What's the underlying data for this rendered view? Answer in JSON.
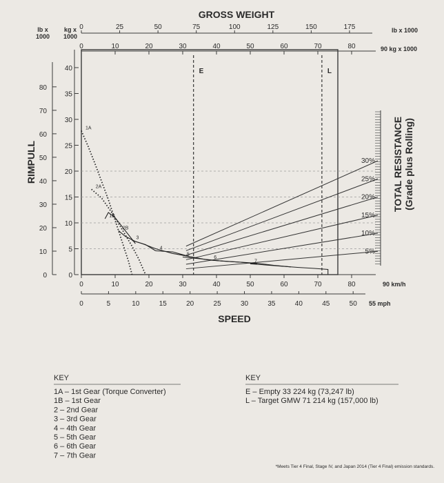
{
  "chart_data": {
    "type": "line",
    "title": "GROSS WEIGHT",
    "weight_lb_label": "lb x 1000",
    "weight_lb_ticks": [
      "0",
      "25",
      "50",
      "75",
      "100",
      "125",
      "150",
      "175"
    ],
    "weight_kg_label": "90 kg x 1000",
    "weight_kg_ticks": [
      "0",
      "10",
      "20",
      "30",
      "40",
      "50",
      "60",
      "70",
      "80"
    ],
    "rimpull_label": "RIMPULL",
    "rimpull_lb_header": [
      "lb x",
      "1000"
    ],
    "rimpull_kg_header": [
      "kg x",
      "1000"
    ],
    "rimpull_lb_ticks": [
      "0",
      "10",
      "20",
      "30",
      "40",
      "50",
      "60",
      "70",
      "80"
    ],
    "rimpull_kg_ticks": [
      "0",
      "5",
      "10",
      "15",
      "20",
      "25",
      "30",
      "35",
      "40"
    ],
    "speed_label": "SPEED",
    "speed_kmh_label": "90 km/h",
    "speed_kmh_ticks": [
      "0",
      "10",
      "20",
      "30",
      "40",
      "50",
      "60",
      "70",
      "80"
    ],
    "speed_mph_label": "55 mph",
    "speed_mph_ticks": [
      "0",
      "5",
      "10",
      "15",
      "20",
      "25",
      "30",
      "35",
      "40",
      "45",
      "50"
    ],
    "resistance_label": [
      "TOTAL RESISTANCE",
      "(Grade plus Rolling)"
    ],
    "resistance_lines": [
      {
        "label": "30%",
        "kg_at_80": 22
      },
      {
        "label": "25%",
        "kg_at_80": 18.5
      },
      {
        "label": "20%",
        "kg_at_80": 15
      },
      {
        "label": "15%",
        "kg_at_80": 11.5
      },
      {
        "label": "10%",
        "kg_at_80": 8
      },
      {
        "label": "5%",
        "kg_at_80": 4.5
      }
    ],
    "markers": [
      {
        "label": "E",
        "weight_kg": 33.2
      },
      {
        "label": "L",
        "weight_kg": 71.2
      }
    ],
    "gear_curves": [
      {
        "label": "1A",
        "points": [
          [
            0,
            27.8
          ],
          [
            2,
            24.8
          ],
          [
            4,
            21.5
          ],
          [
            6,
            18
          ],
          [
            8,
            14.5
          ],
          [
            10,
            10.5
          ],
          [
            12,
            6.5
          ],
          [
            14,
            2.5
          ],
          [
            15,
            0
          ]
        ]
      },
      {
        "label": "2A",
        "points": [
          [
            3,
            16.5
          ],
          [
            6,
            14.8
          ],
          [
            9,
            12
          ],
          [
            12,
            8.8
          ],
          [
            15,
            5.5
          ],
          [
            17,
            3
          ],
          [
            19,
            0
          ]
        ]
      },
      {
        "label": "1B",
        "points": [
          [
            7,
            10.8
          ],
          [
            8,
            12
          ],
          [
            10,
            11
          ],
          [
            13,
            8.5
          ],
          [
            16,
            6
          ]
        ]
      },
      {
        "label": "2B",
        "points": [
          [
            11,
            8.5
          ],
          [
            13,
            7.4
          ],
          [
            16,
            6.4
          ],
          [
            19,
            5.8
          ],
          [
            22,
            4.6
          ]
        ]
      },
      {
        "label": "3",
        "points": [
          [
            15,
            6.6
          ],
          [
            18,
            6
          ],
          [
            22,
            5
          ],
          [
            27,
            4.1
          ],
          [
            32,
            3.5
          ]
        ]
      },
      {
        "label": "4",
        "points": [
          [
            22,
            4.6
          ],
          [
            27,
            4.4
          ],
          [
            32,
            3.5
          ],
          [
            37,
            2.9
          ],
          [
            42,
            2.6
          ]
        ]
      },
      {
        "label": "5",
        "points": [
          [
            30,
            3.4
          ],
          [
            36,
            3
          ],
          [
            42,
            2.6
          ],
          [
            47,
            2.4
          ],
          [
            52,
            2.1
          ]
        ]
      },
      {
        "label": "6",
        "points": [
          [
            38,
            2.8
          ],
          [
            45,
            2.5
          ],
          [
            52,
            2.2
          ],
          [
            57,
            1.8
          ],
          [
            62,
            1.5
          ]
        ]
      },
      {
        "label": "7",
        "points": [
          [
            50,
            2.1
          ],
          [
            58,
            1.7
          ],
          [
            64,
            1.4
          ],
          [
            69,
            1.2
          ],
          [
            73,
            1
          ],
          [
            73,
            0
          ]
        ]
      }
    ]
  },
  "key_gears": {
    "title": "KEY",
    "items": [
      "1A – 1st Gear (Torque Converter)",
      "1B – 1st Gear",
      "2  – 2nd Gear",
      "3  – 3rd Gear",
      "4  – 4th Gear",
      "5  – 5th Gear",
      "6  – 6th Gear",
      "7  – 7th Gear"
    ]
  },
  "key_weights": {
    "title": "KEY",
    "items": [
      "E – Empty 33 224 kg (73,247 lb)",
      "L – Target GMW 71 214 kg (157,000 lb)"
    ]
  },
  "footnote": "*Meets Tier 4 Final, Stage IV, and Japan 2014 (Tier 4 Final) emission standards."
}
